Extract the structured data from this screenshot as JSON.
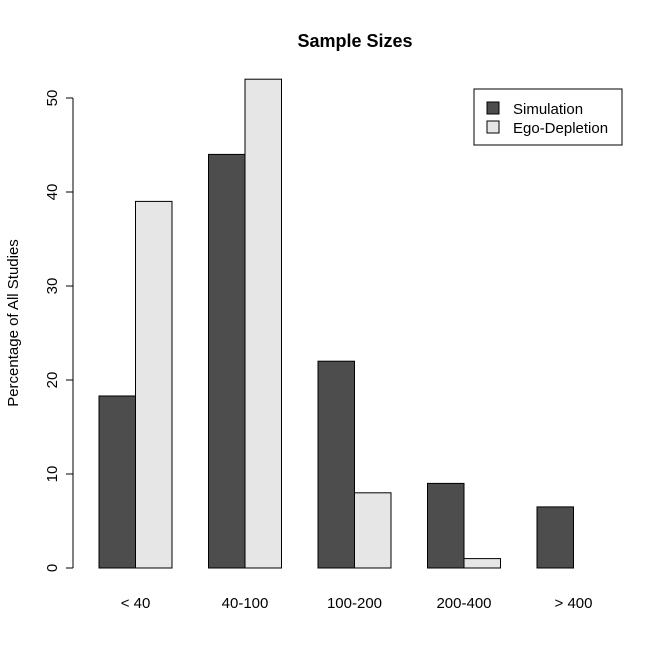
{
  "chart_data": {
    "type": "bar",
    "title": "Sample Sizes",
    "xlabel": "",
    "ylabel": "Percentage of All Studies",
    "categories": [
      "< 40",
      "40-100",
      "100-200",
      "200-400",
      "> 400"
    ],
    "series": [
      {
        "name": "Simulation",
        "values": [
          18.3,
          44,
          22,
          9,
          6.5
        ],
        "color": "#4d4d4d"
      },
      {
        "name": "Ego-Depletion",
        "values": [
          39,
          52,
          8,
          1,
          0
        ],
        "color": "#e6e6e6"
      }
    ],
    "ylim": [
      0,
      52
    ],
    "yticks": [
      0,
      10,
      20,
      30,
      40,
      50
    ],
    "grid": false,
    "legend_position": "top-right"
  }
}
